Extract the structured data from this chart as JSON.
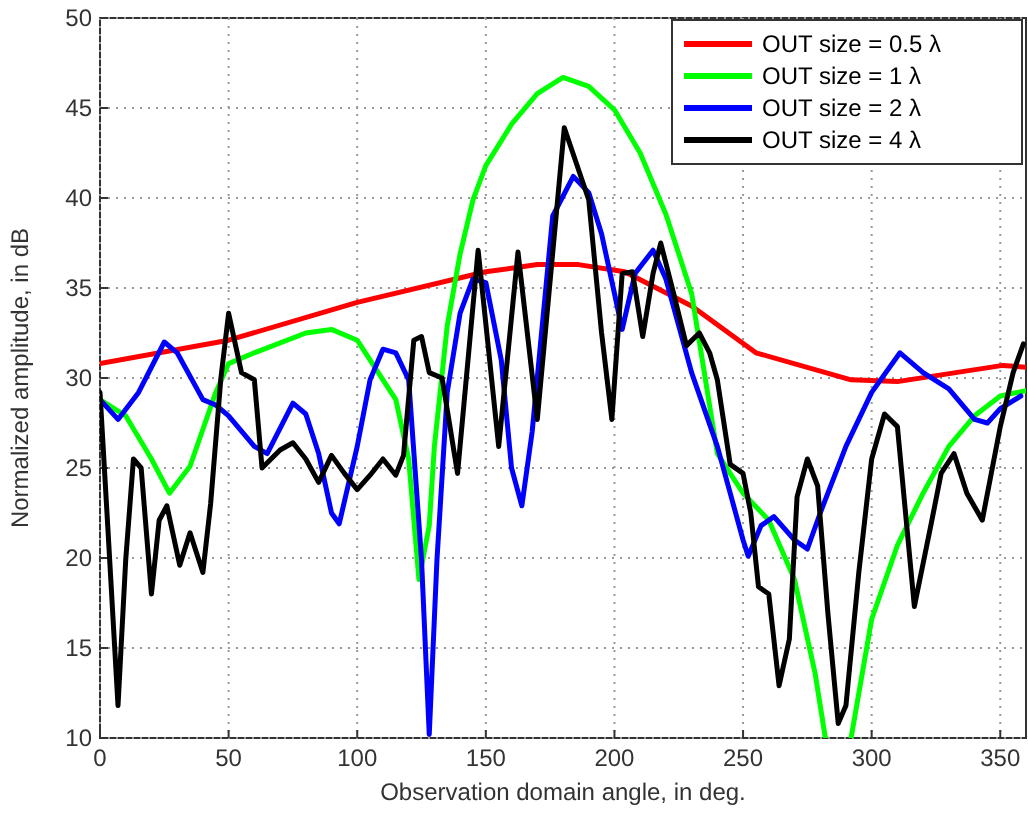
{
  "chart_data": {
    "type": "line",
    "xlabel": "Observation domain angle, in deg.",
    "ylabel": "Normalized amplitude, in dB",
    "xlim": [
      0,
      360
    ],
    "ylim": [
      10,
      50
    ],
    "xticks": [
      0,
      50,
      100,
      150,
      200,
      250,
      300,
      350
    ],
    "yticks": [
      10,
      15,
      20,
      25,
      30,
      35,
      40,
      45,
      50
    ],
    "grid": true,
    "legend": "top right",
    "line_style": "solid",
    "marker": "none",
    "series": [
      {
        "name": "OUT size = 0.5 λ",
        "color": "#ff0000",
        "x": [
          0,
          50,
          100,
          150,
          170,
          186,
          204,
          230,
          255,
          292,
          310,
          351,
          360
        ],
        "values": [
          30.8,
          32.1,
          34.2,
          35.9,
          36.3,
          36.3,
          35.9,
          34.0,
          31.4,
          29.9,
          29.8,
          30.7,
          30.6
        ]
      },
      {
        "name": "OUT size = 1 λ",
        "color": "#00ff00",
        "x": [
          0,
          10,
          20,
          27,
          35,
          45,
          50,
          60,
          80,
          90,
          100,
          110,
          115,
          120,
          124,
          128,
          130,
          135,
          140,
          145,
          150,
          160,
          170,
          180,
          190,
          200,
          210,
          220,
          230,
          240,
          250,
          260,
          270,
          278,
          282,
          287,
          292,
          300,
          310,
          320,
          330,
          340,
          350,
          360
        ],
        "values": [
          28.8,
          27.9,
          25.5,
          23.6,
          25.1,
          29.2,
          30.8,
          31.4,
          32.5,
          32.7,
          32.1,
          29.9,
          28.8,
          25.5,
          18.8,
          21.8,
          26.2,
          32.9,
          36.9,
          39.9,
          41.8,
          44.1,
          45.8,
          46.7,
          46.2,
          44.9,
          42.5,
          39.1,
          34.7,
          25.8,
          23.6,
          22.1,
          18.8,
          13.6,
          10,
          null,
          10,
          16.6,
          20.7,
          23.6,
          26.2,
          27.9,
          29,
          29.3
        ]
      },
      {
        "name": "OUT size = 2 λ",
        "color": "#0000ff",
        "x": [
          0,
          7,
          15,
          25,
          30,
          40,
          45,
          50,
          60,
          65,
          75,
          80,
          85,
          90,
          93,
          100,
          105,
          110,
          115,
          120,
          125,
          128,
          131,
          135,
          140,
          145,
          150,
          156,
          160,
          164,
          168,
          172,
          176,
          184,
          190,
          195,
          200,
          203,
          208,
          215,
          220,
          230,
          240,
          245,
          250,
          252,
          257,
          262,
          270,
          275,
          280,
          290,
          300,
          311,
          320,
          330,
          340,
          345,
          350,
          358
        ],
        "values": [
          28.8,
          27.7,
          29.2,
          32.0,
          31.4,
          28.8,
          28.5,
          27.9,
          26.2,
          25.8,
          28.6,
          28.0,
          25.8,
          22.5,
          21.9,
          26.2,
          29.9,
          31.6,
          31.4,
          29.9,
          19.9,
          10.2,
          19.9,
          29.2,
          33.6,
          35.5,
          35.3,
          31,
          25,
          22.9,
          27,
          33,
          39,
          41.2,
          40.3,
          38.0,
          34.7,
          32.7,
          35.8,
          37.1,
          35.5,
          30.3,
          26.2,
          23.6,
          21,
          20.1,
          21.8,
          22.3,
          21,
          20.5,
          22.5,
          26.2,
          29.2,
          31.4,
          30.3,
          29.4,
          27.7,
          27.5,
          28.3,
          29.0
        ]
      },
      {
        "name": "OUT size = 4 λ",
        "color": "#000000",
        "x": [
          0,
          3,
          7,
          10,
          13,
          16,
          20,
          23,
          26,
          31,
          35,
          40,
          43,
          47,
          50,
          55,
          60,
          63,
          70,
          75,
          80,
          85,
          90,
          95,
          100,
          105,
          110,
          115,
          118,
          122,
          125,
          128,
          133,
          139,
          147,
          155,
          162.5,
          170,
          180.5,
          190,
          195,
          199,
          203,
          207,
          211,
          215,
          218,
          223,
          228,
          233,
          237,
          240,
          245,
          250,
          253,
          256,
          260,
          264,
          268,
          271,
          275,
          279,
          283,
          287,
          290,
          295,
          300,
          305,
          310,
          316.6,
          323,
          327,
          332,
          337,
          343,
          350,
          355,
          359
        ],
        "values": [
          29.2,
          21.8,
          11.8,
          19.9,
          25.5,
          25.0,
          18.0,
          22.1,
          22.9,
          19.6,
          21.4,
          19.2,
          23,
          30,
          33.6,
          30.3,
          29.9,
          25.0,
          26.0,
          26.4,
          25.5,
          24.2,
          25.7,
          24.7,
          23.8,
          24.6,
          25.5,
          24.6,
          25.7,
          32.1,
          32.3,
          30.3,
          30,
          24.7,
          37.1,
          26.2,
          37.0,
          27.7,
          43.9,
          39.9,
          32.5,
          27.7,
          35.8,
          35.9,
          32.3,
          35.8,
          37.5,
          34.7,
          31.8,
          32.5,
          31.4,
          29.9,
          25.2,
          24.7,
          22.5,
          18.4,
          18.0,
          12.9,
          15.5,
          23.4,
          25.5,
          24.0,
          16.9,
          10.8,
          11.8,
          19.2,
          25.5,
          28.0,
          27.3,
          17.3,
          21.8,
          24.7,
          25.8,
          23.6,
          22.1,
          27.3,
          30.3,
          31.9
        ]
      }
    ]
  }
}
